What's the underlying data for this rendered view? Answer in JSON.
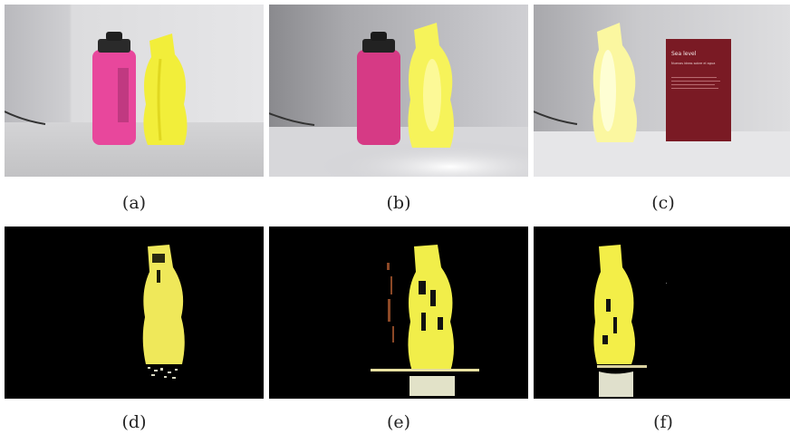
{
  "panels": [
    {
      "id": "a",
      "label": "(a)"
    },
    {
      "id": "b",
      "label": "(b)"
    },
    {
      "id": "c",
      "label": "(c)"
    },
    {
      "id": "d",
      "label": "(d)"
    },
    {
      "id": "e",
      "label": "(e)"
    },
    {
      "id": "f",
      "label": "(f)"
    }
  ],
  "book_cover": {
    "title": "Sea level",
    "subtitle": "Nuevas ideas sobre el agua"
  },
  "colors": {
    "yellow_bottle": "#f2ee3a",
    "pink_bottle": "#e8479c",
    "book": "#7a1a24",
    "mask_background": "#000000"
  }
}
